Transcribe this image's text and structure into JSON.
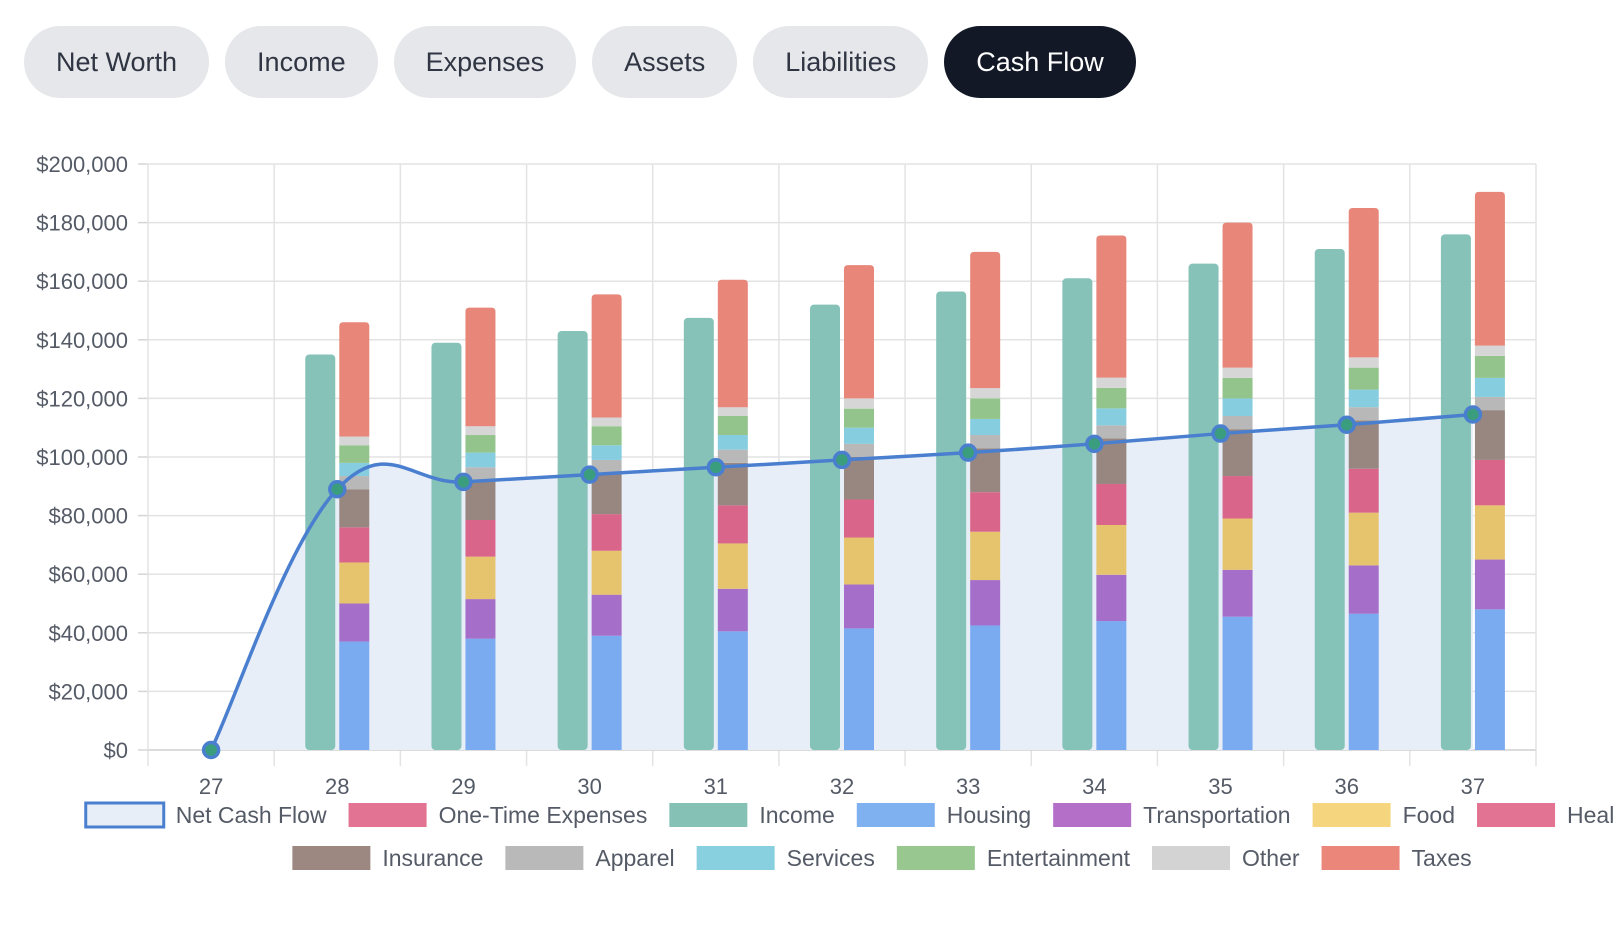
{
  "tabs": [
    {
      "label": "Net Worth",
      "active": false
    },
    {
      "label": "Income",
      "active": false
    },
    {
      "label": "Expenses",
      "active": false
    },
    {
      "label": "Assets",
      "active": false
    },
    {
      "label": "Liabilities",
      "active": false
    },
    {
      "label": "Cash Flow",
      "active": true
    }
  ],
  "chart_data": {
    "type": "bar",
    "title": "",
    "xlabel": "",
    "ylabel": "",
    "ylim": [
      0,
      200000
    ],
    "yticks": [
      0,
      20000,
      40000,
      60000,
      80000,
      100000,
      120000,
      140000,
      160000,
      180000,
      200000
    ],
    "ytick_labels": [
      "$0",
      "$20,000",
      "$40,000",
      "$60,000",
      "$80,000",
      "$100,000",
      "$120,000",
      "$140,000",
      "$160,000",
      "$180,000",
      "$200,000"
    ],
    "categories": [
      "27",
      "28",
      "29",
      "30",
      "31",
      "32",
      "33",
      "34",
      "35",
      "36",
      "37"
    ],
    "line": {
      "name": "Net Cash Flow",
      "color": "#4a7fd0",
      "fill": "#e8eef8",
      "values": [
        0,
        89000,
        91500,
        94000,
        96500,
        99000,
        101500,
        104500,
        108000,
        111000,
        114500
      ]
    },
    "income": {
      "name": "Income",
      "color": "#7fbfb4",
      "values": [
        0,
        135000,
        139000,
        143000,
        147500,
        152000,
        156500,
        161000,
        166000,
        171000,
        176000
      ]
    },
    "expense_series": [
      {
        "name": "Housing",
        "color": "#7aaaf0",
        "values": [
          0,
          37000,
          38000,
          39000,
          40500,
          41500,
          42500,
          44000,
          45500,
          46500,
          48000
        ]
      },
      {
        "name": "Transportation",
        "color": "#a56fc9",
        "values": [
          0,
          13000,
          13500,
          14000,
          14500,
          15000,
          15500,
          15800,
          16000,
          16500,
          17000
        ]
      },
      {
        "name": "Food",
        "color": "#e6c46e",
        "values": [
          0,
          14000,
          14500,
          15000,
          15500,
          16000,
          16500,
          17000,
          17500,
          18000,
          18500
        ]
      },
      {
        "name": "Healthcare",
        "color": "#d9668a",
        "values": [
          0,
          12000,
          12500,
          12500,
          13000,
          13000,
          13500,
          14000,
          14500,
          15000,
          15500
        ]
      },
      {
        "name": "Insurance",
        "color": "#988780",
        "values": [
          0,
          13000,
          13500,
          14000,
          14500,
          14500,
          15000,
          15500,
          16000,
          16500,
          17000
        ]
      },
      {
        "name": "Apparel",
        "color": "#b8b8b8",
        "values": [
          0,
          4500,
          4500,
          4500,
          4500,
          4500,
          4500,
          4500,
          4500,
          4500,
          4500
        ]
      },
      {
        "name": "Services",
        "color": "#86cde0",
        "values": [
          0,
          4500,
          5000,
          5000,
          5000,
          5500,
          5500,
          5800,
          6000,
          6000,
          6500
        ]
      },
      {
        "name": "Entertainment",
        "color": "#93c48b",
        "values": [
          0,
          6000,
          6000,
          6500,
          6500,
          6500,
          7000,
          7000,
          7000,
          7500,
          7500
        ]
      },
      {
        "name": "Other",
        "color": "#d6d6d6",
        "values": [
          0,
          3000,
          3000,
          3000,
          3000,
          3500,
          3500,
          3500,
          3500,
          3500,
          3500
        ]
      },
      {
        "name": "Taxes",
        "color": "#e8867a",
        "values": [
          0,
          39000,
          40500,
          42000,
          43500,
          45500,
          46500,
          48500,
          49500,
          51000,
          52500
        ]
      }
    ],
    "legend": [
      {
        "name": "Net Cash Flow",
        "color": "#e8eef8",
        "border": "#4a7fd0"
      },
      {
        "name": "One-Time Expenses",
        "color": "#e27392"
      },
      {
        "name": "Income",
        "color": "#85c1b5"
      },
      {
        "name": "Housing",
        "color": "#7fb0f0"
      },
      {
        "name": "Transportation",
        "color": "#b46fc9"
      },
      {
        "name": "Food",
        "color": "#f5d57e"
      },
      {
        "name": "Healthcare",
        "color": "#e27392"
      },
      {
        "name": "Insurance",
        "color": "#9c8880"
      },
      {
        "name": "Apparel",
        "color": "#b9b9b9"
      },
      {
        "name": "Services",
        "color": "#88d0e0"
      },
      {
        "name": "Entertainment",
        "color": "#98c890"
      },
      {
        "name": "Other",
        "color": "#d3d3d3"
      },
      {
        "name": "Taxes",
        "color": "#ea877a"
      }
    ]
  }
}
